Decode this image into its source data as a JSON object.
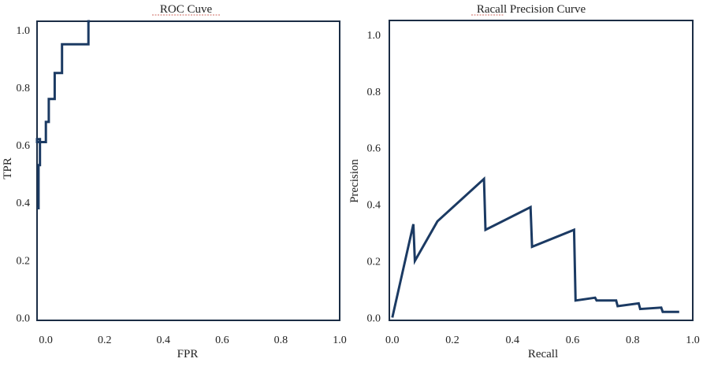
{
  "chart_data": [
    {
      "type": "line",
      "title": "ROC Cuve",
      "xlabel": "FPR",
      "ylabel": "TPR",
      "xlim": [
        -0.03,
        1.0
      ],
      "ylim": [
        -0.01,
        1.03
      ],
      "xticks": [
        0.0,
        0.2,
        0.4,
        0.6,
        0.8,
        1.0
      ],
      "xtick_labels": [
        "0.0",
        "0.2",
        "0.4",
        "0.6",
        "0.8",
        "1.0"
      ],
      "yticks": [
        0.0,
        0.2,
        0.4,
        0.6,
        0.8,
        1.0
      ],
      "ytick_labels": [
        "0.0",
        "0.2",
        "0.4",
        "0.6",
        "0.8",
        "1.0"
      ],
      "grid": false,
      "line_color": "#1b3a63",
      "series": [
        {
          "x": [
            -0.03,
            -0.025,
            -0.025,
            -0.02,
            -0.02,
            -0.03,
            -0.03,
            -0.02,
            -0.02,
            0.0,
            0.0,
            0.01,
            0.01,
            0.03,
            0.03,
            0.055,
            0.055,
            0.06,
            0.06,
            0.08,
            0.08,
            0.145,
            0.145,
            0.15
          ],
          "y": [
            0.38,
            0.38,
            0.53,
            0.53,
            0.61,
            0.61,
            0.62,
            0.62,
            0.61,
            0.61,
            0.68,
            0.68,
            0.76,
            0.76,
            0.85,
            0.85,
            0.95,
            0.95,
            0.95,
            0.95,
            0.95,
            0.95,
            1.03,
            1.03
          ]
        }
      ]
    },
    {
      "type": "line",
      "title": "Racall Precision Curve",
      "xlabel": "Recall",
      "ylabel": "Precision",
      "xlim": [
        -0.01,
        1.0
      ],
      "ylim": [
        -0.01,
        1.05
      ],
      "xticks": [
        0.0,
        0.2,
        0.4,
        0.6,
        0.8,
        1.0
      ],
      "xtick_labels": [
        "0.0",
        "0.2",
        "0.4",
        "0.6",
        "0.8",
        "1.0"
      ],
      "yticks": [
        0.0,
        0.2,
        0.4,
        0.6,
        0.8,
        1.0
      ],
      "ytick_labels": [
        "0.0",
        "0.2",
        "0.4",
        "0.6",
        "0.8",
        "1.0"
      ],
      "grid": false,
      "line_color": "#1b3a63",
      "series": [
        {
          "x": [
            0.0,
            0.07,
            0.075,
            0.15,
            0.305,
            0.31,
            0.46,
            0.465,
            0.605,
            0.61,
            0.675,
            0.68,
            0.745,
            0.75,
            0.82,
            0.825,
            0.895,
            0.9,
            0.955
          ],
          "y": [
            0.0,
            0.33,
            0.2,
            0.34,
            0.49,
            0.31,
            0.39,
            0.25,
            0.31,
            0.06,
            0.07,
            0.06,
            0.06,
            0.04,
            0.05,
            0.03,
            0.035,
            0.02,
            0.02
          ]
        }
      ]
    }
  ]
}
